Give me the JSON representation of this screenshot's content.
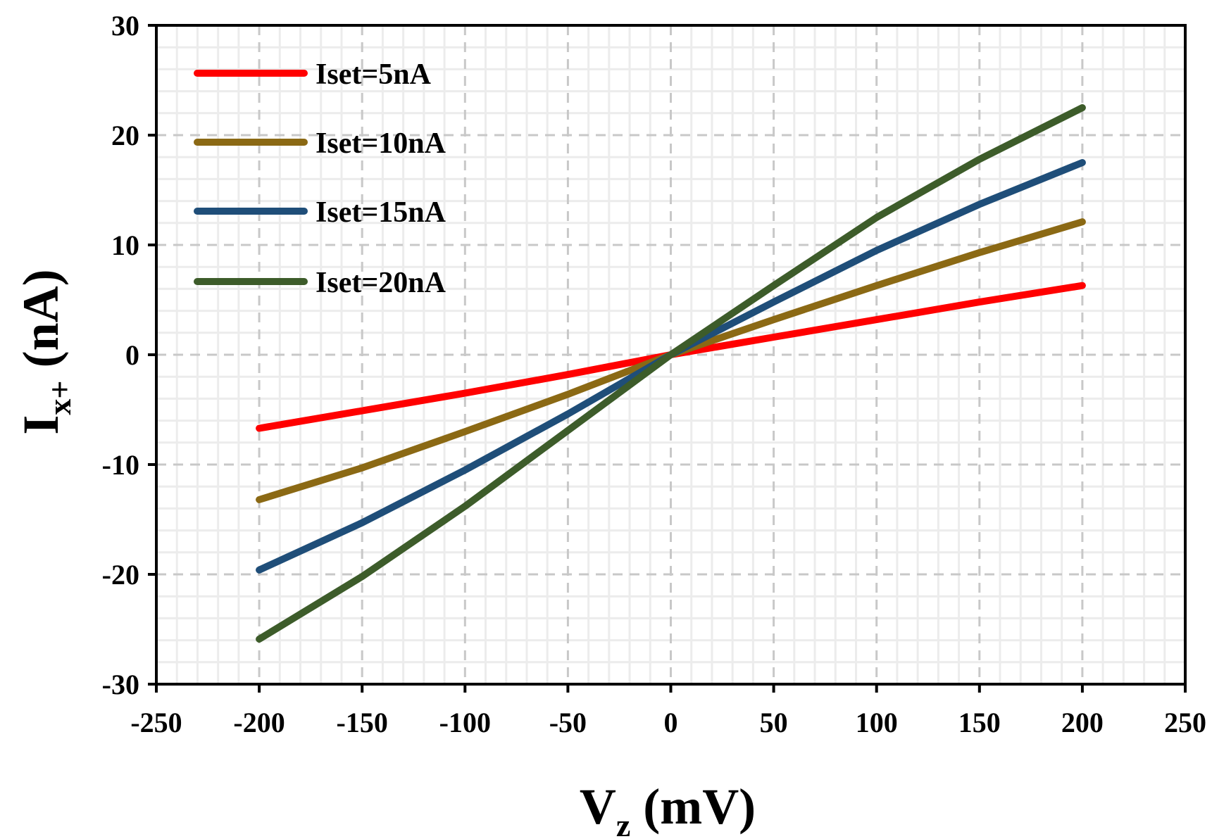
{
  "chart_data": {
    "type": "line",
    "title": "",
    "xlabel": {
      "main": "V",
      "sub": "z",
      "unit": "(mV)"
    },
    "ylabel": {
      "main": "I",
      "sub": "x+",
      "unit": "(nA)"
    },
    "xlim": [
      -250,
      250
    ],
    "ylim": [
      -30,
      30
    ],
    "xticks": [
      "-250",
      "-200",
      "-150",
      "-100",
      "-50",
      "0",
      "50",
      "100",
      "150",
      "200",
      "250"
    ],
    "yticks": [
      "-30",
      "-20",
      "-10",
      "0",
      "10",
      "20",
      "30"
    ],
    "grid": true,
    "legend_position": "top-left",
    "series": [
      {
        "name": "Iset=5nA",
        "color": "#ff0000",
        "x": [
          -200,
          -150,
          -100,
          -50,
          0,
          50,
          100,
          150,
          200
        ],
        "y": [
          -6.7,
          -5.1,
          -3.5,
          -1.8,
          0,
          1.6,
          3.2,
          4.8,
          6.3
        ]
      },
      {
        "name": "Iset=10nA",
        "color": "#8b6914",
        "x": [
          -200,
          -150,
          -100,
          -50,
          0,
          50,
          100,
          150,
          200
        ],
        "y": [
          -13.2,
          -10.3,
          -7.0,
          -3.6,
          0,
          3.2,
          6.3,
          9.3,
          12.1
        ]
      },
      {
        "name": "Iset=15nA",
        "color": "#1f4e79",
        "x": [
          -200,
          -150,
          -100,
          -50,
          0,
          50,
          100,
          150,
          200
        ],
        "y": [
          -19.6,
          -15.3,
          -10.5,
          -5.4,
          0,
          4.8,
          9.5,
          13.7,
          17.5
        ]
      },
      {
        "name": "Iset=20nA",
        "color": "#3d5c2a",
        "x": [
          -200,
          -150,
          -100,
          -50,
          0,
          50,
          100,
          150,
          200
        ],
        "y": [
          -25.9,
          -20.2,
          -13.8,
          -6.9,
          0,
          6.3,
          12.5,
          17.8,
          22.5
        ]
      }
    ]
  }
}
